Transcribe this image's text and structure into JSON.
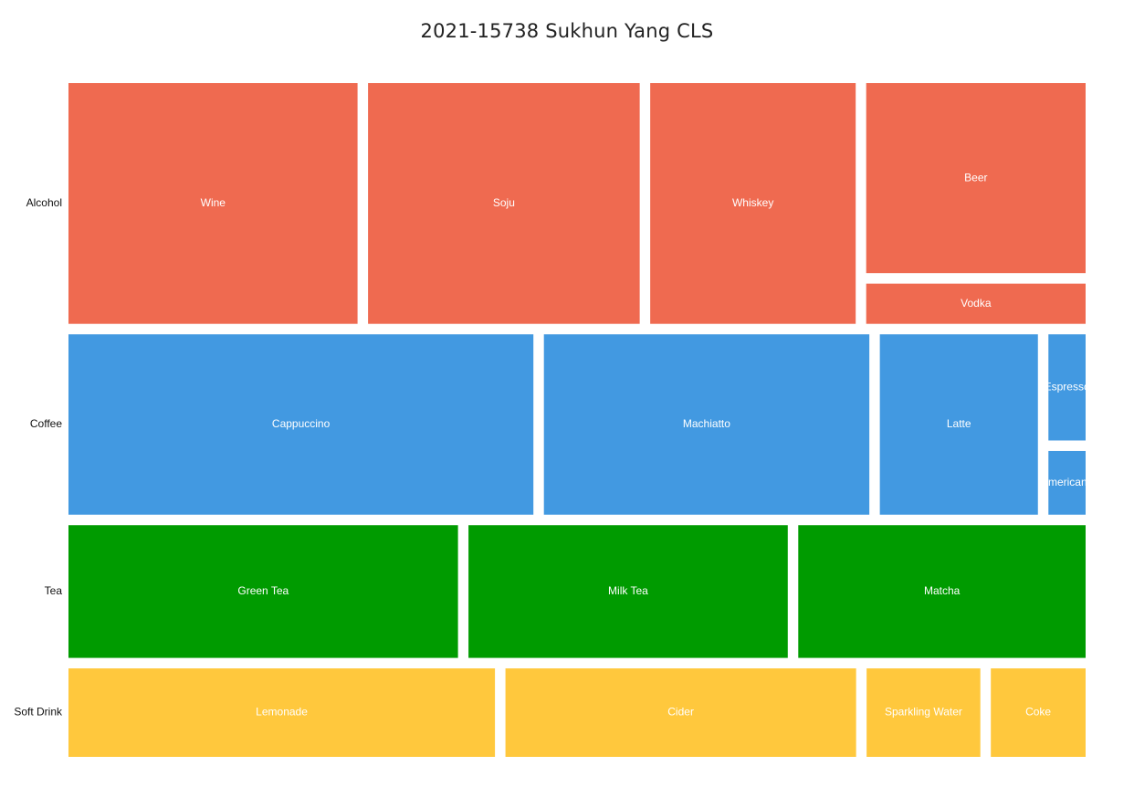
{
  "chart_data": {
    "type": "treemap",
    "title": "2021-15738 Sukhun Yang CLS",
    "categories": [
      {
        "name": "Alcohol",
        "color": "#EF6A50",
        "items": [
          {
            "name": "Wine",
            "value": 83
          },
          {
            "name": "Soju",
            "value": 78
          },
          {
            "name": "Whiskey",
            "value": 59
          },
          {
            "name": "Beer",
            "value": 52
          },
          {
            "name": "Vodka",
            "value": 11
          }
        ]
      },
      {
        "name": "Coffee",
        "color": "#4299E1",
        "items": [
          {
            "name": "Cappuccino",
            "value": 100
          },
          {
            "name": "Machiatto",
            "value": 70
          },
          {
            "name": "Latte",
            "value": 34
          },
          {
            "name": "Espresso",
            "value": 5
          },
          {
            "name": "Americano",
            "value": 3
          }
        ]
      },
      {
        "name": "Tea",
        "color": "#009B00",
        "items": [
          {
            "name": "Green Tea",
            "value": 61
          },
          {
            "name": "Milk Tea",
            "value": 50
          },
          {
            "name": "Matcha",
            "value": 45
          }
        ]
      },
      {
        "name": "Soft Drink",
        "color": "#FFC83D",
        "items": [
          {
            "name": "Lemonade",
            "value": 45
          },
          {
            "name": "Cider",
            "value": 37
          },
          {
            "name": "Sparkling Water",
            "value": 12
          },
          {
            "name": "Coke",
            "value": 10
          }
        ]
      }
    ]
  }
}
